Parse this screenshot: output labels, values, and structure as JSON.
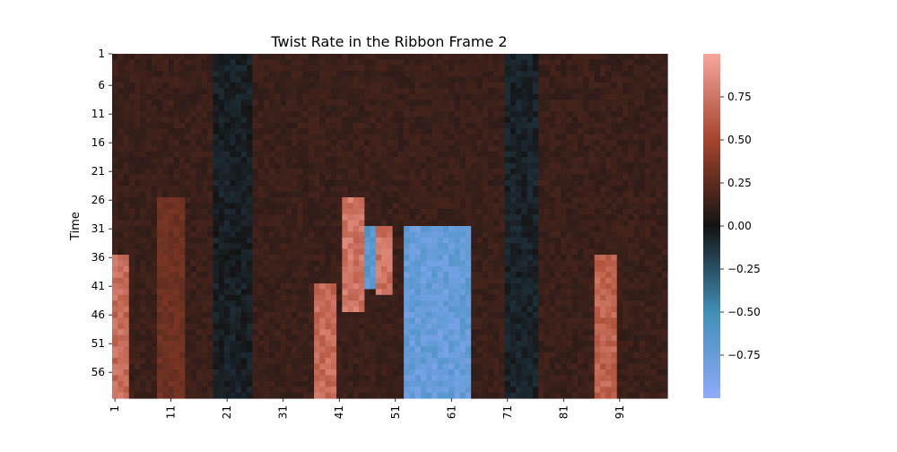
{
  "chart_data": {
    "type": "heatmap",
    "title": "Twist Rate in the Ribbon Frame 2",
    "xlabel": "",
    "ylabel": "Time",
    "x_tick_labels": [
      "1",
      "11",
      "21",
      "31",
      "41",
      "51",
      "61",
      "71",
      "81",
      "91"
    ],
    "y_tick_labels": [
      "1",
      "6",
      "11",
      "16",
      "21",
      "26",
      "31",
      "36",
      "41",
      "46",
      "51",
      "56"
    ],
    "x_range": [
      1,
      99
    ],
    "y_range": [
      1,
      60
    ],
    "colorbar": {
      "min": -1.0,
      "max": 1.0,
      "ticks": [
        0.75,
        0.5,
        0.25,
        0.0,
        -0.25,
        -0.5,
        -0.75
      ],
      "tick_labels": [
        "0.75",
        "0.50",
        "0.25",
        "0.00",
        "−0.25",
        "−0.50",
        "−0.75"
      ],
      "colormap": "diverging blue-black-red (vlag-dark style)",
      "color_low": "#8fabfa",
      "color_mid": "#141313",
      "color_high": "#f7a69c"
    },
    "features": [
      {
        "kind": "band",
        "x_start": 37,
        "x_end": 40,
        "t_start": 41,
        "t_end": 60,
        "value": 0.8
      },
      {
        "kind": "band",
        "x_start": 42,
        "x_end": 45,
        "t_start": 26,
        "t_end": 45,
        "value": 0.85
      },
      {
        "kind": "band",
        "x_start": 46,
        "x_end": 47,
        "t_start": 31,
        "t_end": 41,
        "value": -0.75
      },
      {
        "kind": "band",
        "x_start": 48,
        "x_end": 50,
        "t_start": 31,
        "t_end": 42,
        "value": 0.85
      },
      {
        "kind": "band",
        "x_start": 53,
        "x_end": 64,
        "t_start": 31,
        "t_end": 60,
        "value": -0.85
      },
      {
        "kind": "band",
        "x_start": 87,
        "x_end": 90,
        "t_start": 36,
        "t_end": 60,
        "value": 0.75
      },
      {
        "kind": "band",
        "x_start": 1,
        "x_end": 3,
        "t_start": 36,
        "t_end": 60,
        "value": 0.8
      },
      {
        "kind": "band",
        "x_start": 9,
        "x_end": 13,
        "t_start": 26,
        "t_end": 60,
        "value": 0.35
      }
    ]
  }
}
